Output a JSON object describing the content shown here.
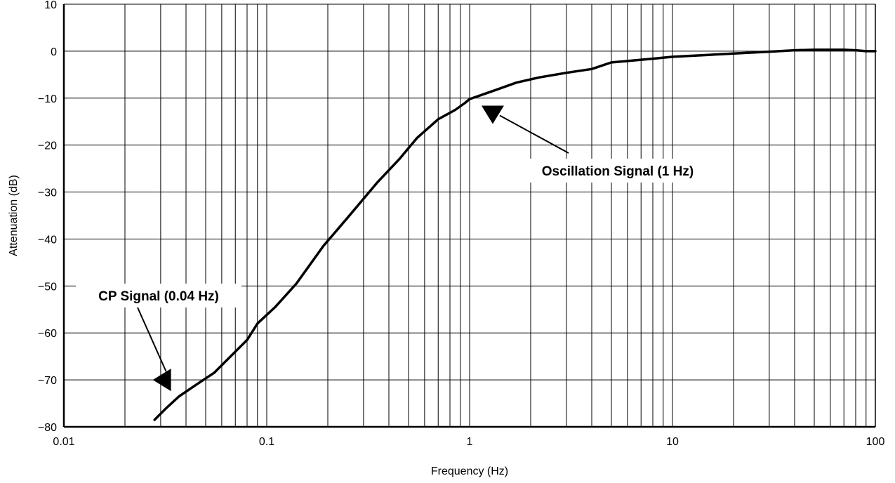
{
  "chart_data": {
    "type": "line",
    "x_scale": "log",
    "xlabel": "Frequency (Hz)",
    "ylabel": "Attenuation (dB)",
    "xlim": [
      0.01,
      100
    ],
    "ylim": [
      -80,
      10
    ],
    "grid": true,
    "x_ticks": [
      {
        "value": 0.01,
        "label": "0.01"
      },
      {
        "value": 0.1,
        "label": "0.1"
      },
      {
        "value": 1,
        "label": "1"
      },
      {
        "value": 10,
        "label": "10"
      },
      {
        "value": 100,
        "label": "100"
      }
    ],
    "y_ticks": [
      {
        "value": 10,
        "label": "10"
      },
      {
        "value": 0,
        "label": "0"
      },
      {
        "value": -10,
        "label": "−10"
      },
      {
        "value": -20,
        "label": "−20"
      },
      {
        "value": -30,
        "label": "−30"
      },
      {
        "value": -40,
        "label": "−40"
      },
      {
        "value": -50,
        "label": "−50"
      },
      {
        "value": -60,
        "label": "−60"
      },
      {
        "value": -70,
        "label": "−70"
      },
      {
        "value": -80,
        "label": "−80"
      }
    ],
    "series": [
      {
        "color": "#000000",
        "x": [
          0.028,
          0.032,
          0.037,
          0.045,
          0.055,
          0.07,
          0.08,
          0.09,
          0.11,
          0.14,
          0.19,
          0.25,
          0.35,
          0.45,
          0.55,
          0.7,
          0.85,
          0.95,
          1.0,
          1.3,
          1.7,
          2.2,
          3.0,
          4.0,
          5.0,
          6.0,
          8.0,
          10,
          15,
          20,
          30,
          40,
          50,
          60,
          70,
          80,
          90,
          100
        ],
        "y": [
          -78.5,
          -76,
          -73.5,
          -71,
          -68.5,
          -64,
          -61.5,
          -58,
          -54.5,
          -49.5,
          -41.5,
          -35.5,
          -28,
          -23,
          -18.5,
          -14.5,
          -12.5,
          -11,
          -10.2,
          -8.5,
          -6.7,
          -5.6,
          -4.6,
          -3.8,
          -2.4,
          -2.1,
          -1.6,
          -1.2,
          -0.8,
          -0.5,
          -0.1,
          0.2,
          0.3,
          0.3,
          0.3,
          0.2,
          0.0,
          0.0
        ]
      }
    ],
    "annotations": [
      {
        "text": "CP Signal (0.04 Hz)",
        "target": {
          "x": 0.034,
          "y": -70
        }
      },
      {
        "text": "Oscillation Signal (1 Hz)",
        "target": {
          "x": 1.3,
          "y": -12.5
        }
      }
    ]
  }
}
